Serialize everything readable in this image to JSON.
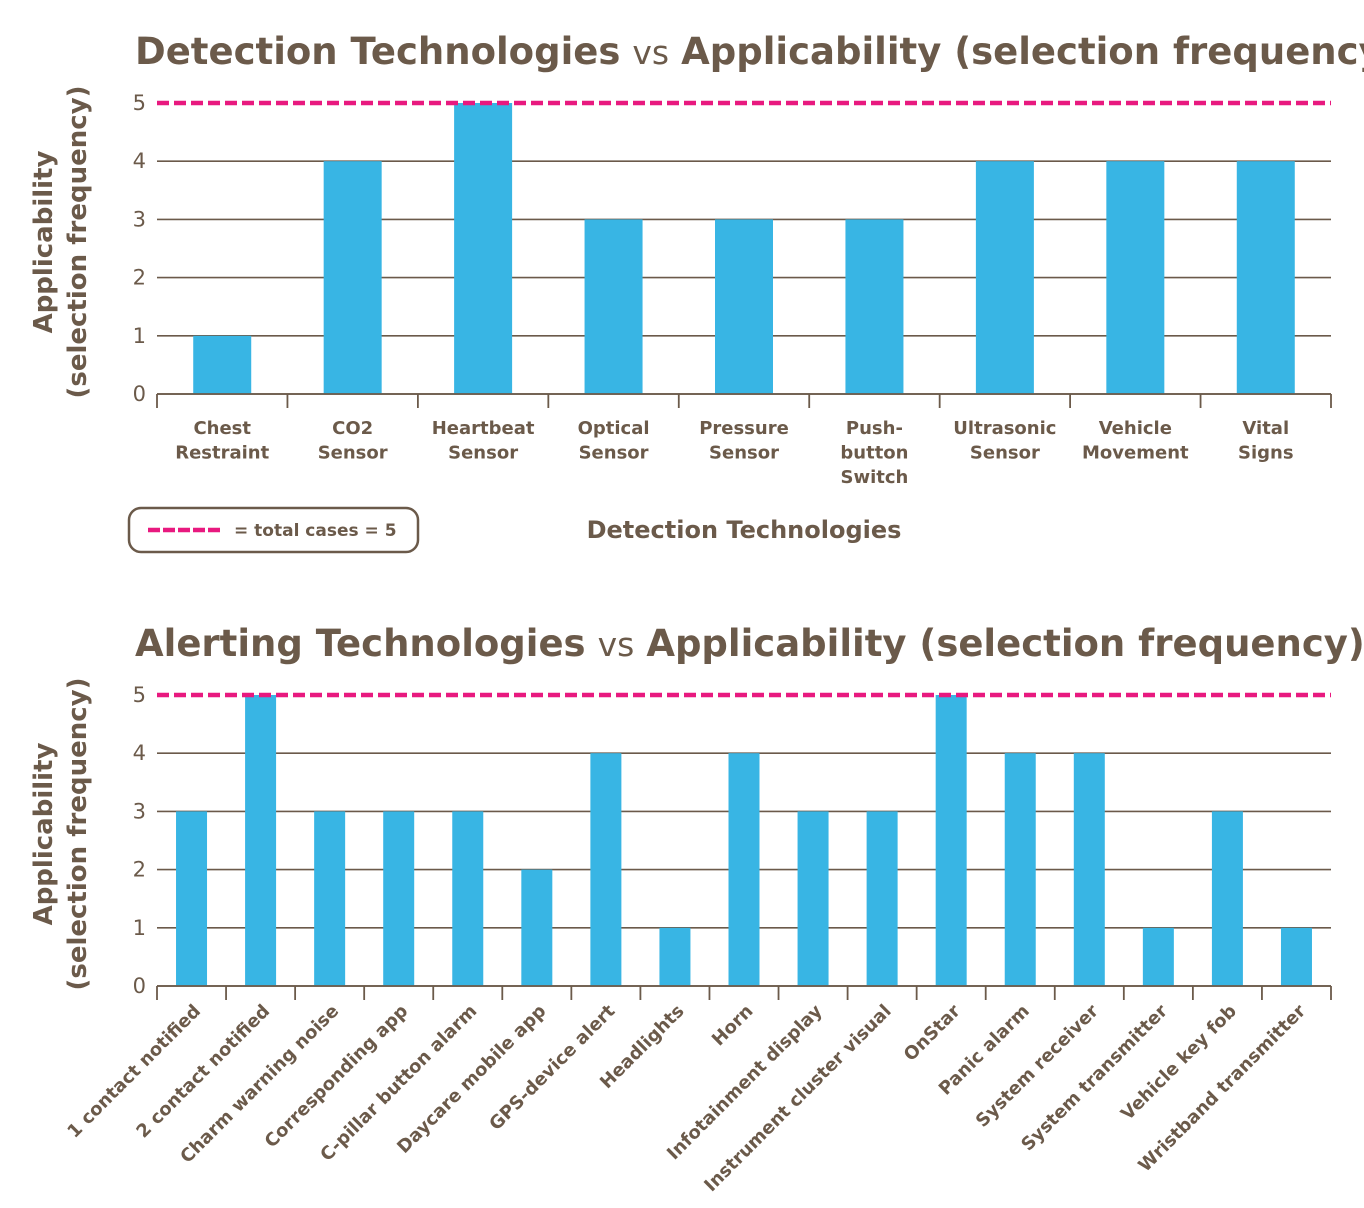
{
  "colors": {
    "bar": "#38b5e4",
    "ref_line": "#e8197f",
    "text": "#6b5a4a",
    "grid": "#6b5a4a"
  },
  "chart_data": [
    {
      "type": "bar",
      "title_parts": [
        "Detection Technologies",
        "vs",
        "Applicability (selection frequency)"
      ],
      "ylabel_lines": [
        "Applicability",
        "(selection frequency)"
      ],
      "xlabel": "Detection Technologies",
      "ylim": [
        0,
        5
      ],
      "yticks": [
        0,
        1,
        2,
        3,
        4,
        5
      ],
      "grid": true,
      "categories": [
        [
          "Chest",
          "Restraint"
        ],
        [
          "CO2",
          "Sensor"
        ],
        [
          "Heartbeat",
          "Sensor"
        ],
        [
          "Optical",
          "Sensor"
        ],
        [
          "Pressure",
          "Sensor"
        ],
        [
          "Push-",
          "button",
          "Switch"
        ],
        [
          "Ultrasonic",
          "Sensor"
        ],
        [
          "Vehicle",
          "Movement"
        ],
        [
          "Vital",
          "Signs"
        ]
      ],
      "values": [
        1,
        4,
        5,
        3,
        3,
        3,
        4,
        4,
        4
      ],
      "reference_line": {
        "value": 5,
        "label": "= total cases = 5"
      }
    },
    {
      "type": "bar",
      "title_parts": [
        "Alerting Technologies",
        "vs",
        "Applicability (selection frequency)"
      ],
      "ylabel_lines": [
        "Applicability",
        "(selection frequency)"
      ],
      "xlabel": "",
      "ylim": [
        0,
        5
      ],
      "yticks": [
        0,
        1,
        2,
        3,
        4,
        5
      ],
      "grid": true,
      "categories": [
        "1 contact notified",
        "2 contact notified",
        "Charm warning noise",
        "Corresponding app",
        "C-pillar button alarm",
        "Daycare mobile app",
        "GPS-device alert",
        "Headlights",
        "Horn",
        "Infotainment display",
        "Instrument cluster visual",
        "OnStar",
        "Panic alarm",
        "System receiver",
        "System transmitter",
        "Vehicle key fob",
        "Wristband transmitter"
      ],
      "values": [
        3,
        5,
        3,
        3,
        3,
        2,
        4,
        1,
        4,
        3,
        3,
        5,
        4,
        4,
        1,
        3,
        1
      ],
      "reference_line": {
        "value": 5
      }
    }
  ]
}
